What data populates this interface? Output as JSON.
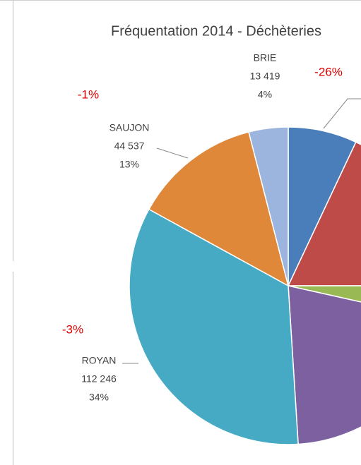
{
  "chart_data": {
    "type": "pie",
    "title": "Fréquentation 2014 - Déchèteries",
    "categories": [
      null,
      null,
      null,
      null,
      "ROYAN",
      "SAUJON",
      "BRIE"
    ],
    "values": [
      7,
      18,
      3.5,
      20.5,
      34,
      13,
      4
    ],
    "value_labels": [
      null,
      null,
      null,
      null,
      "34%",
      "13%",
      "4%"
    ],
    "counts": [
      null,
      null,
      null,
      null,
      "112 246",
      "44 537",
      "13 419"
    ],
    "colors": [
      "#4a7ebb",
      "#be4b48",
      "#98b954",
      "#7d60a0",
      "#46aac5",
      "#e0883a",
      "#9cb5de"
    ],
    "annotations": [
      "-26%",
      "-1%",
      "-3%"
    ]
  }
}
